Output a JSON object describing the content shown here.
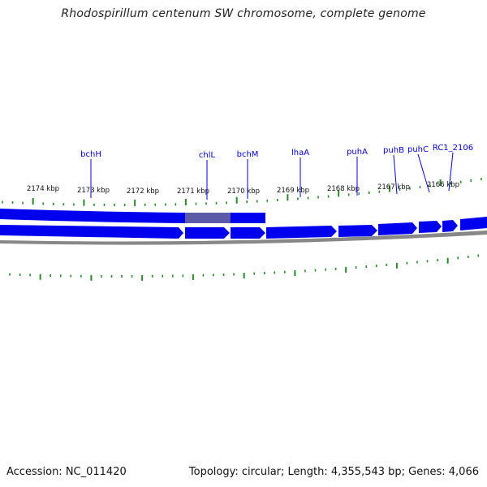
{
  "title": "Rhodospirillum centenum SW chromosome, complete genome",
  "scale_labels": [
    "2174 kbp",
    "2173 kbp",
    "2172 kbp",
    "2171 kbp",
    "2170 kbp",
    "2169 kbp",
    "2168 kbp",
    "2167 kbp",
    "2166 kbp"
  ],
  "gene_labels": [
    "bchH",
    "chlL",
    "bchM",
    "lhaA",
    "puhA",
    "puhB",
    "puhC",
    "RC1_2106"
  ],
  "footer": {
    "accession": "Accession: NC_011420",
    "summary": "Topology: circular; Length: 4,355,543 bp; Genes: 4,066"
  },
  "colors": {
    "gene": "#0000ee",
    "selected_gene": "#5a5aa8",
    "label": "#0000cc",
    "tick": "#2a8a2a",
    "backbone": "#888888"
  }
}
